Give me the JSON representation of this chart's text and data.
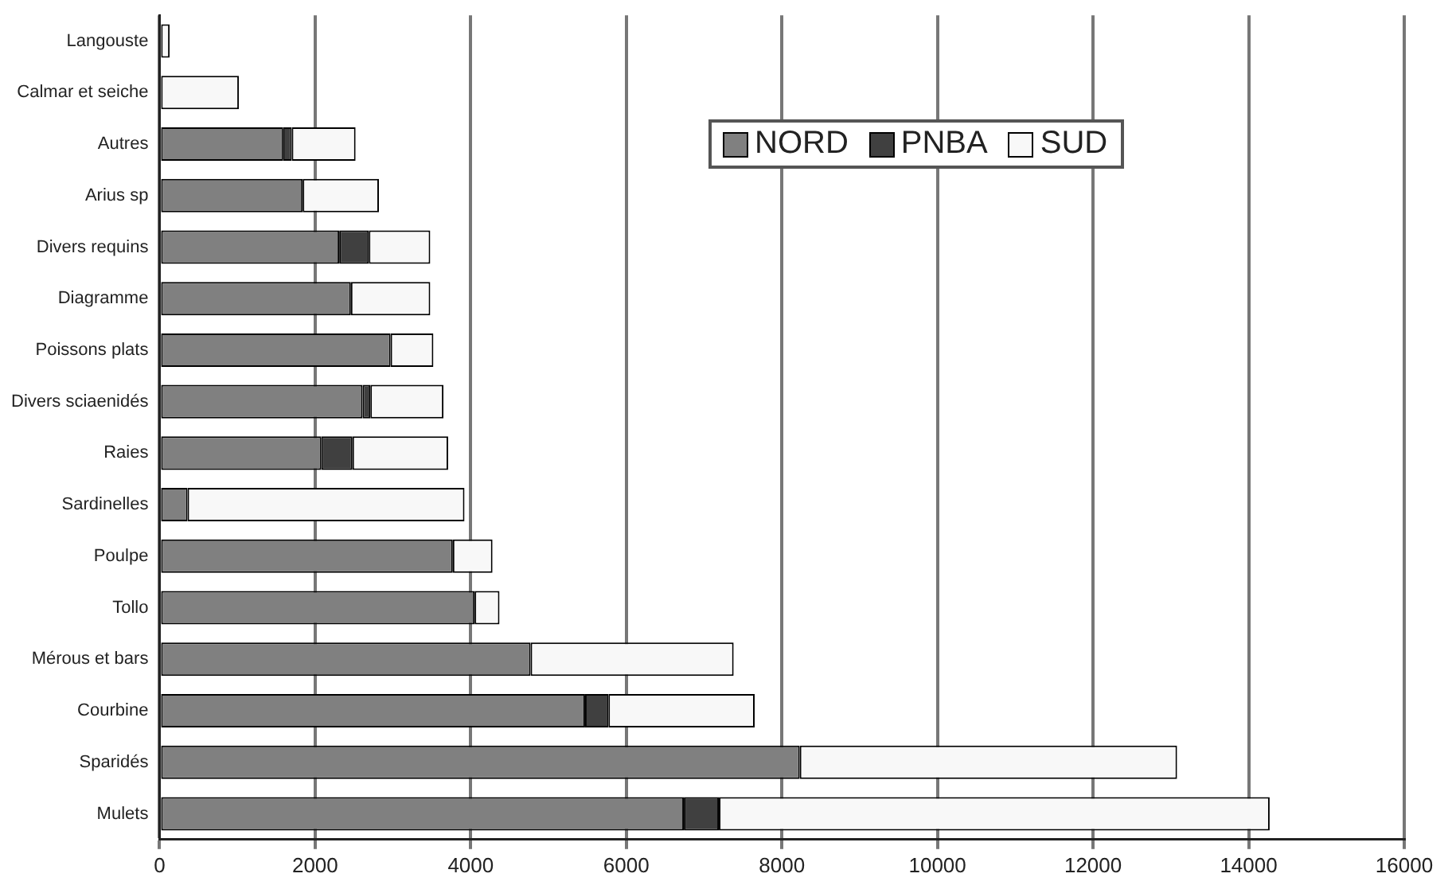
{
  "chart_data": {
    "type": "bar",
    "orientation": "horizontal",
    "stacked": true,
    "categories": [
      "Langouste",
      "Calmar et seiche",
      "Autres",
      "Arius sp",
      "Divers requins",
      "Diagramme",
      "Poissons plats",
      "Divers sciaenidés",
      "Raies",
      "Sardinelles",
      "Poulpe",
      "Tollo",
      "Mérous et bars",
      "Courbine",
      "Sparidés",
      "Mulets"
    ],
    "series": [
      {
        "name": "NORD",
        "color": "#808080",
        "values": [
          0,
          0,
          1590,
          1840,
          2310,
          2460,
          2970,
          2610,
          2080,
          360,
          3770,
          4050,
          4770,
          5470,
          8230,
          6740
        ]
      },
      {
        "name": "PNBA",
        "color": "#404040",
        "values": [
          0,
          0,
          110,
          0,
          380,
          0,
          0,
          100,
          400,
          0,
          0,
          0,
          0,
          300,
          0,
          450
        ]
      },
      {
        "name": "SUD",
        "color": "#f8f8f8",
        "values": [
          130,
          1020,
          820,
          980,
          790,
          1020,
          550,
          940,
          1230,
          3560,
          510,
          320,
          2610,
          1880,
          4850,
          7080
        ]
      }
    ],
    "xlim": [
      0,
      16000
    ],
    "xticks": [
      0,
      2000,
      4000,
      6000,
      8000,
      10000,
      12000,
      14000,
      16000
    ],
    "grid": "x",
    "legend": "top right"
  }
}
